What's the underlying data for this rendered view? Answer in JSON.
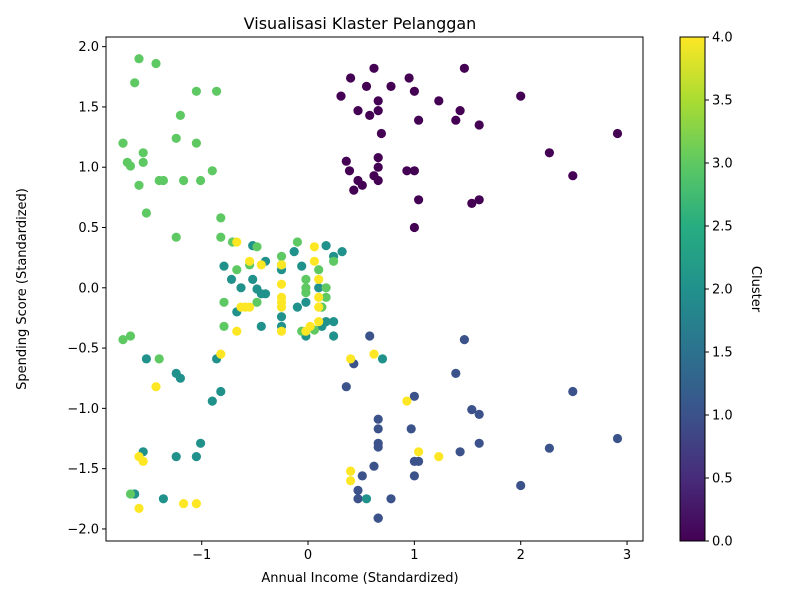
{
  "chart_data": {
    "type": "scatter",
    "title": "Visualisasi Klaster Pelanggan",
    "xlabel": "Annual Income (Standardized)",
    "ylabel": "Spending Score (Standardized)",
    "xlim": [
      -1.9,
      3.15
    ],
    "ylim": [
      -2.1,
      2.08
    ],
    "xticks": [
      -1,
      0,
      1,
      2,
      3
    ],
    "yticks": [
      -2.0,
      -1.5,
      -1.0,
      -0.5,
      0.0,
      0.5,
      1.0,
      1.5,
      2.0
    ],
    "ytick_labels": [
      "−2.0",
      "−1.5",
      "−1.0",
      "−0.5",
      "0.0",
      "0.5",
      "1.0",
      "1.5",
      "2.0"
    ],
    "xtick_labels": [
      "−1",
      "0",
      "1",
      "2",
      "3"
    ],
    "colorbar": {
      "label": "Cluster",
      "colormap": "viridis",
      "range": [
        0,
        4
      ],
      "ticks": [
        0.0,
        0.5,
        1.0,
        1.5,
        2.0,
        2.5,
        3.0,
        3.5,
        4.0
      ],
      "tick_labels": [
        "0.0",
        "0.5",
        "1.0",
        "1.5",
        "2.0",
        "2.5",
        "3.0",
        "3.5",
        "4.0"
      ]
    },
    "grid": false,
    "series": [
      {
        "cluster": 0,
        "color": "#440154",
        "points": [
          [
            0.31,
            1.59
          ],
          [
            0.4,
            1.74
          ],
          [
            0.55,
            1.67
          ],
          [
            0.62,
            1.82
          ],
          [
            0.95,
            1.74
          ],
          [
            1.47,
            1.82
          ],
          [
            0.47,
            1.47
          ],
          [
            0.58,
            1.43
          ],
          [
            0.66,
            1.55
          ],
          [
            0.66,
            1.47
          ],
          [
            0.69,
            1.28
          ],
          [
            0.78,
            1.67
          ],
          [
            1.0,
            1.63
          ],
          [
            1.04,
            1.39
          ],
          [
            1.23,
            1.55
          ],
          [
            1.39,
            1.39
          ],
          [
            1.43,
            1.47
          ],
          [
            1.61,
            1.35
          ],
          [
            2.0,
            1.59
          ],
          [
            2.91,
            1.28
          ],
          [
            2.27,
            1.12
          ],
          [
            2.49,
            0.93
          ],
          [
            0.36,
            1.05
          ],
          [
            0.39,
            0.97
          ],
          [
            0.47,
            0.89
          ],
          [
            0.51,
            0.85
          ],
          [
            0.43,
            0.81
          ],
          [
            0.62,
            0.93
          ],
          [
            0.66,
            1.08
          ],
          [
            0.66,
            1.0
          ],
          [
            0.66,
            0.89
          ],
          [
            0.93,
            0.97
          ],
          [
            1.0,
            0.97
          ],
          [
            1.04,
            0.73
          ],
          [
            1.0,
            0.5
          ],
          [
            1.54,
            0.7
          ],
          [
            1.61,
            0.73
          ]
        ]
      },
      {
        "cluster": 1,
        "color": "#3b528b",
        "points": [
          [
            0.58,
            -0.4
          ],
          [
            0.43,
            -0.63
          ],
          [
            0.36,
            -0.82
          ],
          [
            1.47,
            -0.43
          ],
          [
            1.39,
            -0.71
          ],
          [
            2.49,
            -0.86
          ],
          [
            1.0,
            -0.9
          ],
          [
            1.54,
            -1.01
          ],
          [
            1.61,
            -1.05
          ],
          [
            0.66,
            -1.09
          ],
          [
            0.66,
            -1.17
          ],
          [
            0.97,
            -1.17
          ],
          [
            2.91,
            -1.25
          ],
          [
            0.66,
            -1.29
          ],
          [
            0.66,
            -1.32
          ],
          [
            1.61,
            -1.29
          ],
          [
            2.27,
            -1.33
          ],
          [
            1.43,
            -1.36
          ],
          [
            0.62,
            -1.48
          ],
          [
            1.0,
            -1.44
          ],
          [
            1.04,
            -1.44
          ],
          [
            0.51,
            -1.56
          ],
          [
            1.0,
            -1.56
          ],
          [
            2.0,
            -1.64
          ],
          [
            0.47,
            -1.68
          ],
          [
            0.47,
            -1.75
          ],
          [
            0.78,
            -1.75
          ],
          [
            0.66,
            -1.91
          ],
          [
            0.66,
            -1.91
          ]
        ]
      },
      {
        "cluster": 2,
        "color": "#21918c",
        "points": [
          [
            -0.79,
            0.18
          ],
          [
            -0.72,
            0.07
          ],
          [
            -0.63,
            0.0
          ],
          [
            -0.52,
            0.35
          ],
          [
            -0.52,
            0.07
          ],
          [
            -0.48,
            -0.01
          ],
          [
            -0.44,
            -0.05
          ],
          [
            -0.4,
            -0.05
          ],
          [
            -0.4,
            0.22
          ],
          [
            -0.67,
            -0.2
          ],
          [
            -0.44,
            -0.32
          ],
          [
            -0.25,
            -0.24
          ],
          [
            -0.25,
            -0.32
          ],
          [
            -0.13,
            0.3
          ],
          [
            -0.1,
            -0.16
          ],
          [
            -0.06,
            0.18
          ],
          [
            -0.02,
            -0.4
          ],
          [
            -0.02,
            -0.12
          ],
          [
            0.1,
            0.0
          ],
          [
            0.13,
            -0.32
          ],
          [
            0.17,
            -0.28
          ],
          [
            0.17,
            0.35
          ],
          [
            0.24,
            -0.28
          ],
          [
            0.24,
            -0.4
          ],
          [
            0.24,
            0.26
          ],
          [
            0.32,
            0.3
          ],
          [
            0.7,
            -0.59
          ],
          [
            -1.52,
            -0.59
          ],
          [
            -1.24,
            -0.71
          ],
          [
            -1.2,
            -0.75
          ],
          [
            -0.86,
            -0.59
          ],
          [
            -0.82,
            -0.86
          ],
          [
            -0.9,
            -0.94
          ],
          [
            -1.01,
            -1.29
          ],
          [
            -1.05,
            -1.4
          ],
          [
            -1.24,
            -1.4
          ],
          [
            -1.55,
            -1.36
          ],
          [
            -1.63,
            -1.71
          ],
          [
            -1.36,
            -1.75
          ],
          [
            0.55,
            -1.75
          ],
          [
            -0.25,
            0.15
          ]
        ]
      },
      {
        "cluster": 3,
        "color": "#5ec962",
        "points": [
          [
            -1.59,
            1.9
          ],
          [
            -1.43,
            1.86
          ],
          [
            -1.63,
            1.7
          ],
          [
            -1.05,
            1.63
          ],
          [
            -0.86,
            1.63
          ],
          [
            -1.2,
            1.43
          ],
          [
            -1.74,
            1.2
          ],
          [
            -1.55,
            1.12
          ],
          [
            -1.24,
            1.24
          ],
          [
            -1.05,
            1.2
          ],
          [
            -1.7,
            1.04
          ],
          [
            -1.67,
            1.01
          ],
          [
            -1.55,
            1.04
          ],
          [
            -1.59,
            0.85
          ],
          [
            -1.4,
            0.89
          ],
          [
            -1.36,
            0.89
          ],
          [
            -1.17,
            0.89
          ],
          [
            -1.01,
            0.89
          ],
          [
            -0.9,
            0.97
          ],
          [
            -1.52,
            0.62
          ],
          [
            -1.24,
            0.42
          ],
          [
            -0.82,
            0.58
          ],
          [
            -0.82,
            0.42
          ],
          [
            -0.71,
            0.38
          ],
          [
            -0.48,
            0.34
          ],
          [
            -0.67,
            0.15
          ],
          [
            -0.55,
            0.19
          ],
          [
            -0.79,
            -0.12
          ],
          [
            -0.79,
            -0.32
          ],
          [
            -0.48,
            -0.12
          ],
          [
            -0.25,
            0.26
          ],
          [
            -0.25,
            0.19
          ],
          [
            -0.1,
            0.38
          ],
          [
            -0.02,
            0.07
          ],
          [
            -0.02,
            0.0
          ],
          [
            0.06,
            -0.35
          ],
          [
            0.1,
            0.15
          ],
          [
            0.13,
            -0.16
          ],
          [
            0.17,
            0.0
          ],
          [
            0.17,
            -0.08
          ],
          [
            0.24,
            0.22
          ],
          [
            -1.4,
            -0.59
          ],
          [
            -1.67,
            -0.4
          ],
          [
            -1.74,
            -0.43
          ],
          [
            -1.67,
            -1.71
          ],
          [
            -0.06,
            -0.36
          ],
          [
            -0.02,
            -0.04
          ]
        ]
      },
      {
        "cluster": 4,
        "color": "#fde725",
        "points": [
          [
            -0.67,
            0.38
          ],
          [
            -0.55,
            0.22
          ],
          [
            -0.44,
            0.19
          ],
          [
            -0.25,
            0.19
          ],
          [
            -0.25,
            0.03
          ],
          [
            -0.25,
            -0.08
          ],
          [
            -0.25,
            -0.12
          ],
          [
            -0.25,
            -0.16
          ],
          [
            -0.25,
            -0.36
          ],
          [
            -0.59,
            -0.16
          ],
          [
            -0.55,
            -0.16
          ],
          [
            -0.63,
            -0.16
          ],
          [
            -0.67,
            -0.36
          ],
          [
            0.06,
            0.34
          ],
          [
            0.06,
            0.22
          ],
          [
            0.1,
            0.07
          ],
          [
            0.1,
            -0.08
          ],
          [
            0.1,
            -0.16
          ],
          [
            0.1,
            -0.28
          ],
          [
            0.02,
            -0.32
          ],
          [
            -0.02,
            -0.36
          ],
          [
            0.4,
            -0.59
          ],
          [
            0.62,
            -0.55
          ],
          [
            0.93,
            -0.94
          ],
          [
            -0.82,
            -0.55
          ],
          [
            -1.43,
            -0.82
          ],
          [
            1.04,
            -1.36
          ],
          [
            1.23,
            -1.4
          ],
          [
            0.4,
            -1.52
          ],
          [
            0.4,
            -1.6
          ],
          [
            -1.59,
            -1.4
          ],
          [
            -1.55,
            -1.44
          ],
          [
            -1.59,
            -1.83
          ],
          [
            -1.17,
            -1.79
          ],
          [
            -1.05,
            -1.79
          ]
        ]
      }
    ]
  }
}
